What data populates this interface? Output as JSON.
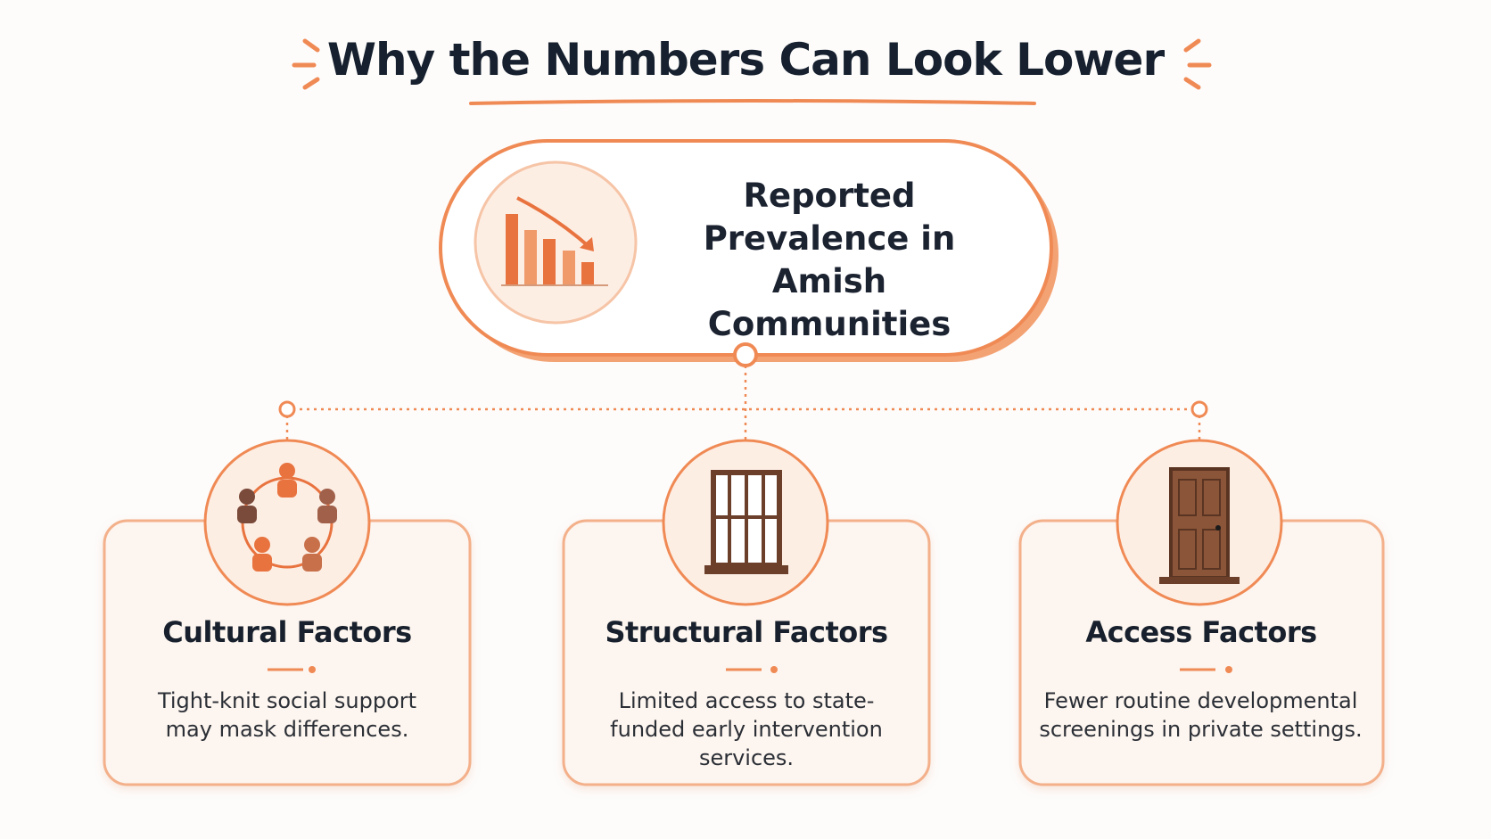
{
  "header": {
    "title": "Why the Numbers Can Look Lower"
  },
  "center_node": {
    "label": "Reported Prevalence in Amish Communities"
  },
  "cards": [
    {
      "title": "Cultural Factors",
      "description": "Tight-knit social support may mask differences."
    },
    {
      "title": "Structural Factors",
      "description": "Limited access to state-funded early intervention services."
    },
    {
      "title": "Access Factors",
      "description": "Fewer routine developmental screenings in private settings."
    }
  ]
}
